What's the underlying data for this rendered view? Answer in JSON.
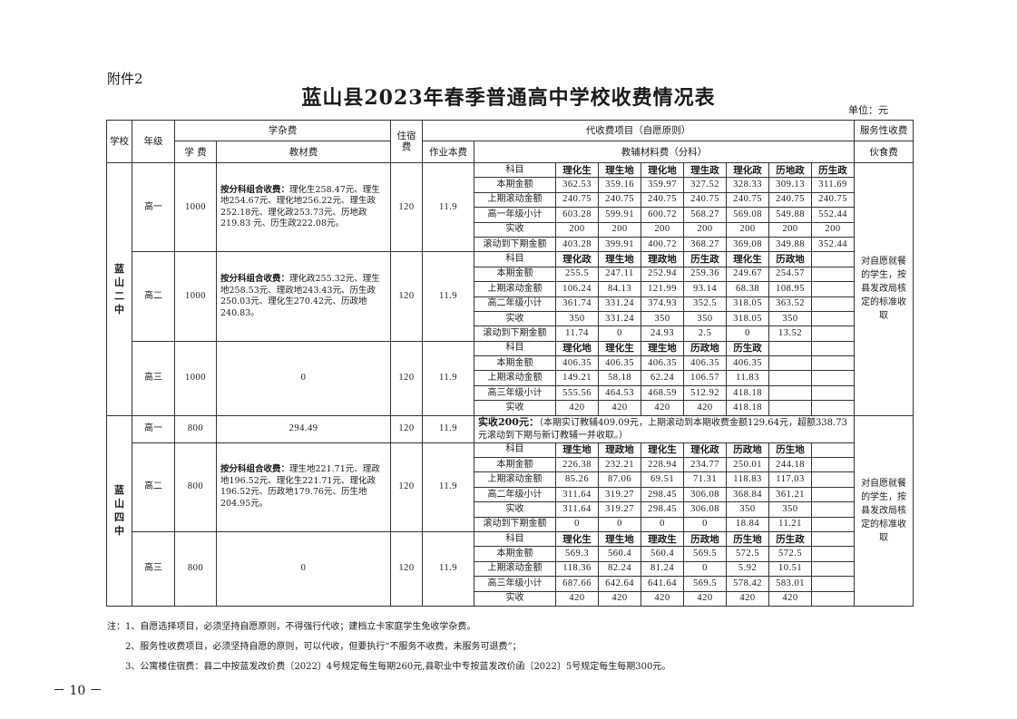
{
  "attachment": "附件2",
  "title": "蓝山县2023年春季普通高中学校收费情况表",
  "unit": "单位：元",
  "headers": {
    "school": "学校",
    "grade": "年级",
    "misc_fee": "学杂费",
    "tuition": "学 费",
    "textbook": "教材费",
    "lodging": "住宿费",
    "collection": "代收费项目（自愿原则）",
    "homework": "作业本费",
    "aux": "教辅材料费（分科）",
    "service": "服务性收费",
    "meal": "伙食费"
  },
  "schools": [
    {
      "name": "蓝山二中",
      "service": "对自愿就餐的学生，按县发改局核定的标准收取",
      "grades": [
        {
          "grade": "高一",
          "tuition": "1000",
          "textbook_bold": "按分科组合收费：",
          "textbook_text": "理化生258.47元、理生地254.67元、理化地256.22元、理生政252.18元、理化政253.73元、历地政219.83 元、历生政222.08元。",
          "lodging": "120",
          "homework": "11.9",
          "rows": [
            {
              "label": "科目",
              "values": [
                "理化生",
                "理生地",
                "理化地",
                "理生政",
                "理化政",
                "历地政",
                "历生政"
              ]
            },
            {
              "label": "本期金额",
              "values": [
                "362.53",
                "359.16",
                "359.97",
                "327.52",
                "328.33",
                "309.13",
                "311.69"
              ]
            },
            {
              "label": "上期滚动金额",
              "values": [
                "240.75",
                "240.75",
                "240.75",
                "240.75",
                "240.75",
                "240.75",
                "240.75"
              ]
            },
            {
              "label": "高一年级小计",
              "values": [
                "603.28",
                "599.91",
                "600.72",
                "568.27",
                "569.08",
                "549.88",
                "552.44"
              ]
            },
            {
              "label": "实收",
              "values": [
                "200",
                "200",
                "200",
                "200",
                "200",
                "200",
                "200"
              ]
            },
            {
              "label": "滚动到下期金额",
              "values": [
                "403.28",
                "399.91",
                "400.72",
                "368.27",
                "369.08",
                "349.88",
                "352.44"
              ]
            }
          ]
        },
        {
          "grade": "高二",
          "tuition": "1000",
          "textbook_bold": "按分科组合收费：",
          "textbook_text": "理化政255.32元、理生地258.53元、理政地243.43元、历生政250.03元、理化生270.42元、历政地240.83。",
          "lodging": "120",
          "homework": "11.9",
          "rows": [
            {
              "label": "科目",
              "values": [
                "理化政",
                "理生地",
                "理政地",
                "历生政",
                "理化生",
                "历政地",
                ""
              ]
            },
            {
              "label": "本期金额",
              "values": [
                "255.5",
                "247.11",
                "252.94",
                "259.36",
                "249.67",
                "254.57",
                ""
              ]
            },
            {
              "label": "上期滚动金额",
              "values": [
                "106.24",
                "84.13",
                "121.99",
                "93.14",
                "68.38",
                "108.95",
                ""
              ]
            },
            {
              "label": "高二年级小计",
              "values": [
                "361.74",
                "331.24",
                "374.93",
                "352.5",
                "318.05",
                "363.52",
                ""
              ]
            },
            {
              "label": "实收",
              "values": [
                "350",
                "331.24",
                "350",
                "350",
                "318.05",
                "350",
                ""
              ]
            },
            {
              "label": "滚动到下期金额",
              "values": [
                "11.74",
                "0",
                "24.93",
                "2.5",
                "0",
                "13.52",
                ""
              ]
            }
          ]
        },
        {
          "grade": "高三",
          "tuition": "1000",
          "textbook_bold": "",
          "textbook_text": "0",
          "lodging": "120",
          "homework": "11.9",
          "rows": [
            {
              "label": "科目",
              "values": [
                "理化地",
                "理化生",
                "理生地",
                "历政地",
                "历生政",
                "",
                ""
              ]
            },
            {
              "label": "本期金额",
              "values": [
                "406.35",
                "406.35",
                "406.35",
                "406.35",
                "406.35",
                "",
                ""
              ]
            },
            {
              "label": "上期滚动金额",
              "values": [
                "149.21",
                "58.18",
                "62.24",
                "106.57",
                "11.83",
                "",
                ""
              ]
            },
            {
              "label": "高三年级小计",
              "values": [
                "555.56",
                "464.53",
                "468.59",
                "512.92",
                "418.18",
                "",
                ""
              ]
            },
            {
              "label": "实收",
              "values": [
                "420",
                "420",
                "420",
                "420",
                "418.18",
                "",
                ""
              ]
            }
          ]
        }
      ]
    },
    {
      "name": "蓝山四中",
      "service": "对自愿就餐的学生，按县发改局核定的标准收取",
      "grades": [
        {
          "grade": "高一",
          "tuition": "800",
          "textbook_bold": "",
          "textbook_text": "294.49",
          "lodging": "120",
          "homework": "11.9",
          "note_bold": "实收200元：",
          "note_text": "（本期实订教辅409.09元，上期滚动到本期收费金额129.64元，超额338.73元滚动到下期与新订教辅一并收取。）"
        },
        {
          "grade": "高二",
          "tuition": "800",
          "textbook_bold": "按分科组合收费：",
          "textbook_text": "理生地221.71元、理政地196.52元、理化生221.71元、理化政196.52元、历政地179.76元、历生地204.95元。",
          "lodging": "120",
          "homework": "11.9",
          "rows": [
            {
              "label": "科目",
              "values": [
                "理生地",
                "理政地",
                "理化生",
                "理化政",
                "历政地",
                "历生地",
                ""
              ]
            },
            {
              "label": "本期金额",
              "values": [
                "226.38",
                "232.21",
                "228.94",
                "234.77",
                "250.01",
                "244.18",
                ""
              ]
            },
            {
              "label": "上期滚动金额",
              "values": [
                "85.26",
                "87.06",
                "69.51",
                "71.31",
                "118.83",
                "117.03",
                ""
              ]
            },
            {
              "label": "高二年级小计",
              "values": [
                "311.64",
                "319.27",
                "298.45",
                "306.08",
                "368.84",
                "361.21",
                ""
              ]
            },
            {
              "label": "实收",
              "values": [
                "311.64",
                "319.27",
                "298.45",
                "306.08",
                "350",
                "350",
                ""
              ]
            },
            {
              "label": "滚动到下期金额",
              "values": [
                "0",
                "0",
                "0",
                "0",
                "18.84",
                "11.21",
                ""
              ]
            }
          ]
        },
        {
          "grade": "高三",
          "tuition": "800",
          "textbook_bold": "",
          "textbook_text": "0",
          "lodging": "120",
          "homework": "11.9",
          "rows": [
            {
              "label": "科目",
              "values": [
                "理化生",
                "理生地",
                "理政生",
                "历政地",
                "历生地",
                "历生政",
                ""
              ]
            },
            {
              "label": "本期金额",
              "values": [
                "569.3",
                "560.4",
                "560.4",
                "569.5",
                "572.5",
                "572.5",
                ""
              ]
            },
            {
              "label": "上期滚动金额",
              "values": [
                "118.36",
                "82.24",
                "81.24",
                "0",
                "5.92",
                "10.51",
                ""
              ]
            },
            {
              "label": "高三年级小计",
              "values": [
                "687.66",
                "642.64",
                "641.64",
                "569.5",
                "578.42",
                "583.01",
                ""
              ]
            },
            {
              "label": "实收",
              "values": [
                "420",
                "420",
                "420",
                "420",
                "420",
                "420",
                ""
              ]
            }
          ]
        }
      ]
    }
  ],
  "notes": [
    "注：1、自愿选择项目，必须坚持自愿原则，不得强行代收；建档立卡家庭学生免收学杂费。",
    "2、服务性收费项目，必须坚持自愿的原则，可以代收，但要执行“不服务不收费，未服务可退费”；",
    "3、公寓楼住宿费：县二中按蓝发改价费〔2022〕4号规定每生每期260元,县职业中专按蓝发改价函〔2022〕5号规定每生每期300元。"
  ],
  "page_number": "－ 10 －"
}
